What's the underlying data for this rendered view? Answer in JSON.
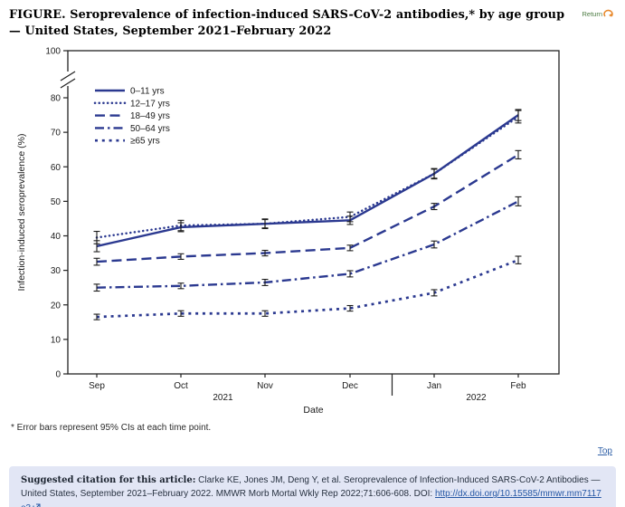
{
  "page": {
    "title": "FIGURE. Seroprevalence of infection-induced SARS-CoV-2 antibodies,* by age group — United States, September 2021–February 2022",
    "return_label": "Return",
    "footnote": "* Error bars represent 95% CIs at each time point.",
    "top_label": "Top"
  },
  "citation": {
    "label": "Suggested citation for this article:",
    "text": " Clarke KE, Jones JM, Deng Y, et al. Seroprevalence of Infection-Induced SARS-CoV-2 Antibodies — United States, September 2021–February 2022. MMWR Morb Mortal Wkly Rep 2022;71:606-608. DOI: ",
    "doi_link": "http://dx.doi.org/10.15585/mmwr.mm7117e3",
    "suffix": " ."
  },
  "colors": {
    "line": "#2b3990",
    "error_bar": "#1b1b1b",
    "axis": "#222222",
    "text": "#1a1a1a",
    "citation_bg": "#e2e6f5",
    "link_blue": "#2456a4",
    "return_green": "#4d7c43",
    "return_orange": "#e8892d"
  },
  "chart_data": {
    "type": "line",
    "title": "",
    "xlabel": "Date",
    "ylabel": "Infection-induced seroprevalence (%)",
    "categories": [
      "Sep",
      "Oct",
      "Nov",
      "Dec",
      "Jan",
      "Feb"
    ],
    "year_labels": [
      {
        "label": "2021",
        "span_months": [
          "Sep",
          "Dec"
        ]
      },
      {
        "label": "2022",
        "span_months": [
          "Jan",
          "Feb"
        ]
      }
    ],
    "ylim": [
      0,
      100
    ],
    "yticks": [
      0,
      10,
      20,
      30,
      40,
      50,
      60,
      70,
      80,
      100
    ],
    "y_axis_break": [
      80,
      100
    ],
    "grid": false,
    "legend_position": "top-left-inside",
    "error_bar_note": "95% CIs at each time point",
    "series": [
      {
        "name": "0–11 yrs",
        "style": "solid",
        "values": [
          37.0,
          42.5,
          43.5,
          44.5,
          58.0,
          75.0
        ],
        "errors": [
          1.6,
          1.3,
          1.2,
          1.2,
          1.3,
          1.6
        ]
      },
      {
        "name": "12–17 yrs",
        "style": "dot",
        "values": [
          39.5,
          43.0,
          43.5,
          45.5,
          58.0,
          74.5
        ],
        "errors": [
          1.8,
          1.5,
          1.4,
          1.4,
          1.5,
          1.8
        ]
      },
      {
        "name": "18–49 yrs",
        "style": "dash",
        "values": [
          32.5,
          34.0,
          35.0,
          36.5,
          48.5,
          63.5
        ],
        "errors": [
          1.0,
          0.8,
          0.8,
          0.8,
          0.9,
          1.2
        ]
      },
      {
        "name": "50–64 yrs",
        "style": "dashdot",
        "values": [
          25.0,
          25.5,
          26.5,
          29.0,
          37.5,
          50.0
        ],
        "errors": [
          1.0,
          0.8,
          0.9,
          0.9,
          1.0,
          1.3
        ]
      },
      {
        "name": "≥65 yrs",
        "style": "sqdot",
        "values": [
          16.5,
          17.5,
          17.5,
          19.0,
          23.5,
          33.0
        ],
        "errors": [
          0.8,
          0.8,
          0.8,
          0.8,
          0.9,
          1.1
        ]
      }
    ]
  }
}
